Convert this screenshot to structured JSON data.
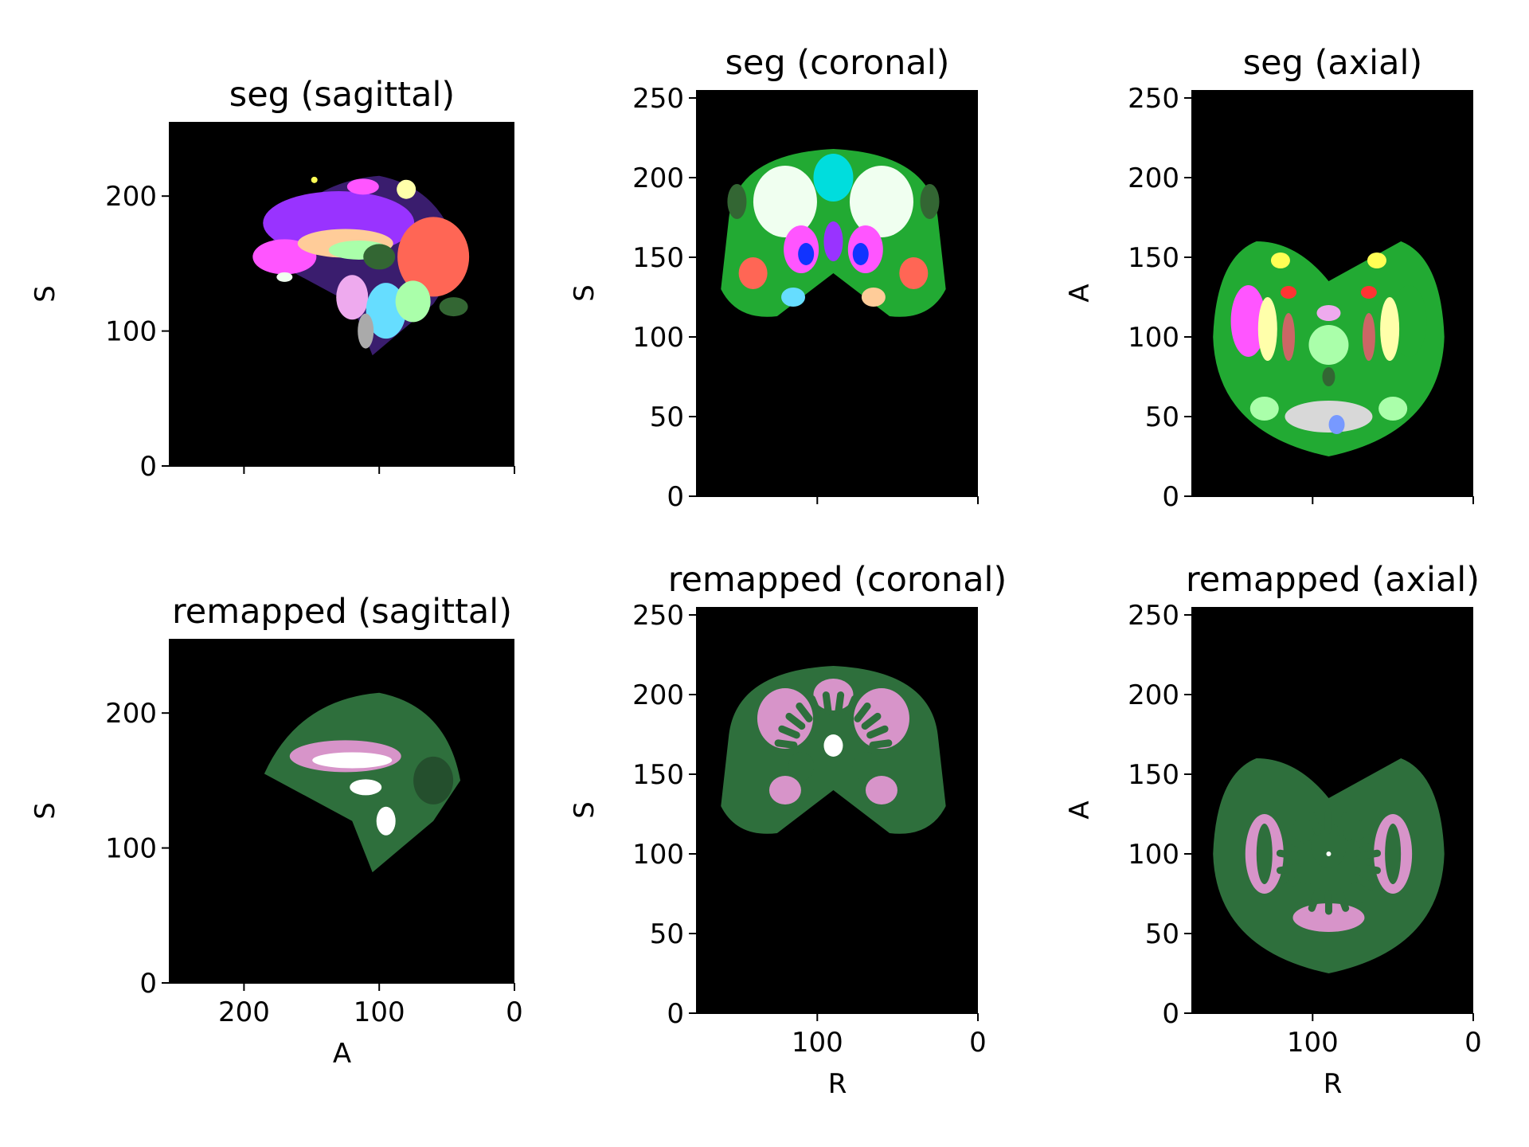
{
  "colors": {
    "background": "#000000",
    "white_matter": "#d794c9",
    "gray_matter": "#2e6f3c",
    "csf": "#ffffff",
    "seg_palette": [
      "#ff55ff",
      "#9933ff",
      "#00dddd",
      "#f0fff0",
      "#ffcc99",
      "#4466ff",
      "#ff6655",
      "#22aa33",
      "#ffff55",
      "#cc6666",
      "#aaffaa",
      "#eeaaee",
      "#1133ff",
      "#ffffaa",
      "#66ddff",
      "#aaaaaa",
      "#ff3333",
      "#7799ff",
      "#336633",
      "#ee88aa"
    ]
  },
  "chart_data": [
    {
      "type": "heatmap",
      "title": "seg (sagittal)",
      "xlabel": "",
      "ylabel": "S",
      "xlim": [
        255,
        0
      ],
      "ylim": [
        0,
        255
      ],
      "xticks": [
        200,
        100,
        0
      ],
      "yticks": [
        0,
        100,
        200
      ],
      "xtick_labels": [],
      "ytick_labels": [
        "0",
        "100",
        "200"
      ],
      "view": "sagittal",
      "colormap": "segmentation labels"
    },
    {
      "type": "heatmap",
      "title": "seg (coronal)",
      "xlabel": "",
      "ylabel": "S",
      "xlim": [
        175,
        0
      ],
      "ylim": [
        0,
        255
      ],
      "xticks": [
        100,
        0
      ],
      "yticks": [
        0,
        50,
        100,
        150,
        200,
        250
      ],
      "xtick_labels": [],
      "ytick_labels": [
        "0",
        "50",
        "100",
        "150",
        "200",
        "250"
      ],
      "view": "coronal",
      "colormap": "segmentation labels"
    },
    {
      "type": "heatmap",
      "title": "seg (axial)",
      "xlabel": "",
      "ylabel": "A",
      "xlim": [
        175,
        0
      ],
      "ylim": [
        0,
        255
      ],
      "xticks": [
        100,
        0
      ],
      "yticks": [
        0,
        50,
        100,
        150,
        200,
        250
      ],
      "xtick_labels": [],
      "ytick_labels": [
        "0",
        "50",
        "100",
        "150",
        "200",
        "250"
      ],
      "view": "axial",
      "colormap": "segmentation labels"
    },
    {
      "type": "heatmap",
      "title": "remapped (sagittal)",
      "xlabel": "A",
      "ylabel": "S",
      "xlim": [
        255,
        0
      ],
      "ylim": [
        0,
        255
      ],
      "xticks": [
        200,
        100,
        0
      ],
      "yticks": [
        0,
        100,
        200
      ],
      "xtick_labels": [
        "200",
        "100",
        "0"
      ],
      "ytick_labels": [
        "0",
        "100",
        "200"
      ],
      "view": "sagittal",
      "colormap": "remapped tissue classes"
    },
    {
      "type": "heatmap",
      "title": "remapped (coronal)",
      "xlabel": "R",
      "ylabel": "S",
      "xlim": [
        175,
        0
      ],
      "ylim": [
        0,
        255
      ],
      "xticks": [
        100,
        0
      ],
      "yticks": [
        0,
        50,
        100,
        150,
        200,
        250
      ],
      "xtick_labels": [
        "100",
        "0"
      ],
      "ytick_labels": [
        "0",
        "50",
        "100",
        "150",
        "200",
        "250"
      ],
      "view": "coronal",
      "colormap": "remapped tissue classes"
    },
    {
      "type": "heatmap",
      "title": "remapped (axial)",
      "xlabel": "R",
      "ylabel": "A",
      "xlim": [
        175,
        0
      ],
      "ylim": [
        0,
        255
      ],
      "xticks": [
        100,
        0
      ],
      "yticks": [
        0,
        50,
        100,
        150,
        200,
        250
      ],
      "xtick_labels": [
        "100",
        "0"
      ],
      "ytick_labels": [
        "0",
        "50",
        "100",
        "150",
        "200",
        "250"
      ],
      "view": "axial",
      "colormap": "remapped tissue classes"
    }
  ]
}
